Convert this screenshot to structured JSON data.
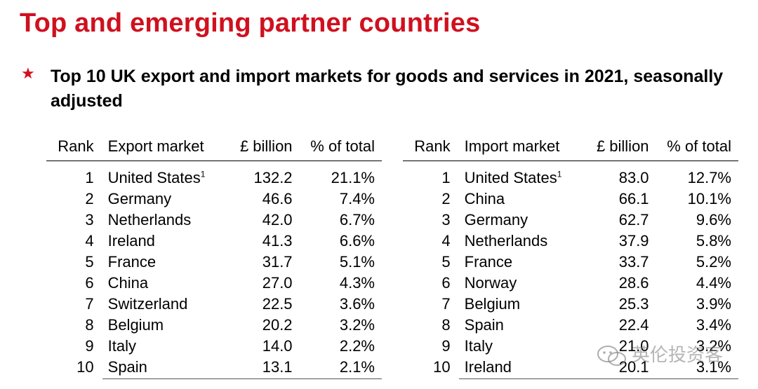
{
  "title": "Top and emerging partner countries",
  "subtitle": "Top 10 UK export and import markets for goods and services in 2021, seasonally adjusted",
  "colors": {
    "accent": "#d0101e"
  },
  "export_table": {
    "headers": [
      "Rank",
      "Export market",
      "£ billion",
      "% of total"
    ],
    "rows": [
      [
        "1",
        "United States",
        "132.2",
        "21.1%"
      ],
      [
        "2",
        "Germany",
        "46.6",
        "7.4%"
      ],
      [
        "3",
        "Netherlands",
        "42.0",
        "6.7%"
      ],
      [
        "4",
        "Ireland",
        "41.3",
        "6.6%"
      ],
      [
        "5",
        "France",
        "31.7",
        "5.1%"
      ],
      [
        "6",
        "China",
        "27.0",
        "4.3%"
      ],
      [
        "7",
        "Switzerland",
        "22.5",
        "3.6%"
      ],
      [
        "8",
        "Belgium",
        "20.2",
        "3.2%"
      ],
      [
        "9",
        "Italy",
        "14.0",
        "2.2%"
      ],
      [
        "10",
        "Spain",
        "13.1",
        "2.1%"
      ]
    ]
  },
  "import_table": {
    "headers": [
      "Rank",
      "Import market",
      "£ billion",
      "% of total"
    ],
    "rows": [
      [
        "1",
        "United States",
        "83.0",
        "12.7%"
      ],
      [
        "2",
        "China",
        "66.1",
        "10.1%"
      ],
      [
        "3",
        "Germany",
        "62.7",
        "9.6%"
      ],
      [
        "4",
        "Netherlands",
        "37.9",
        "5.8%"
      ],
      [
        "5",
        "France",
        "33.7",
        "5.2%"
      ],
      [
        "6",
        "Norway",
        "28.6",
        "4.4%"
      ],
      [
        "7",
        "Belgium",
        "25.3",
        "3.9%"
      ],
      [
        "8",
        "Spain",
        "22.4",
        "3.4%"
      ],
      [
        "9",
        "Italy",
        "21.0",
        "3.2%"
      ],
      [
        "10",
        "Ireland",
        "20.1",
        "3.1%"
      ]
    ]
  },
  "footnote_marker": "1",
  "watermark": {
    "text": "英伦投资客",
    "icon": "wechat-icon"
  }
}
